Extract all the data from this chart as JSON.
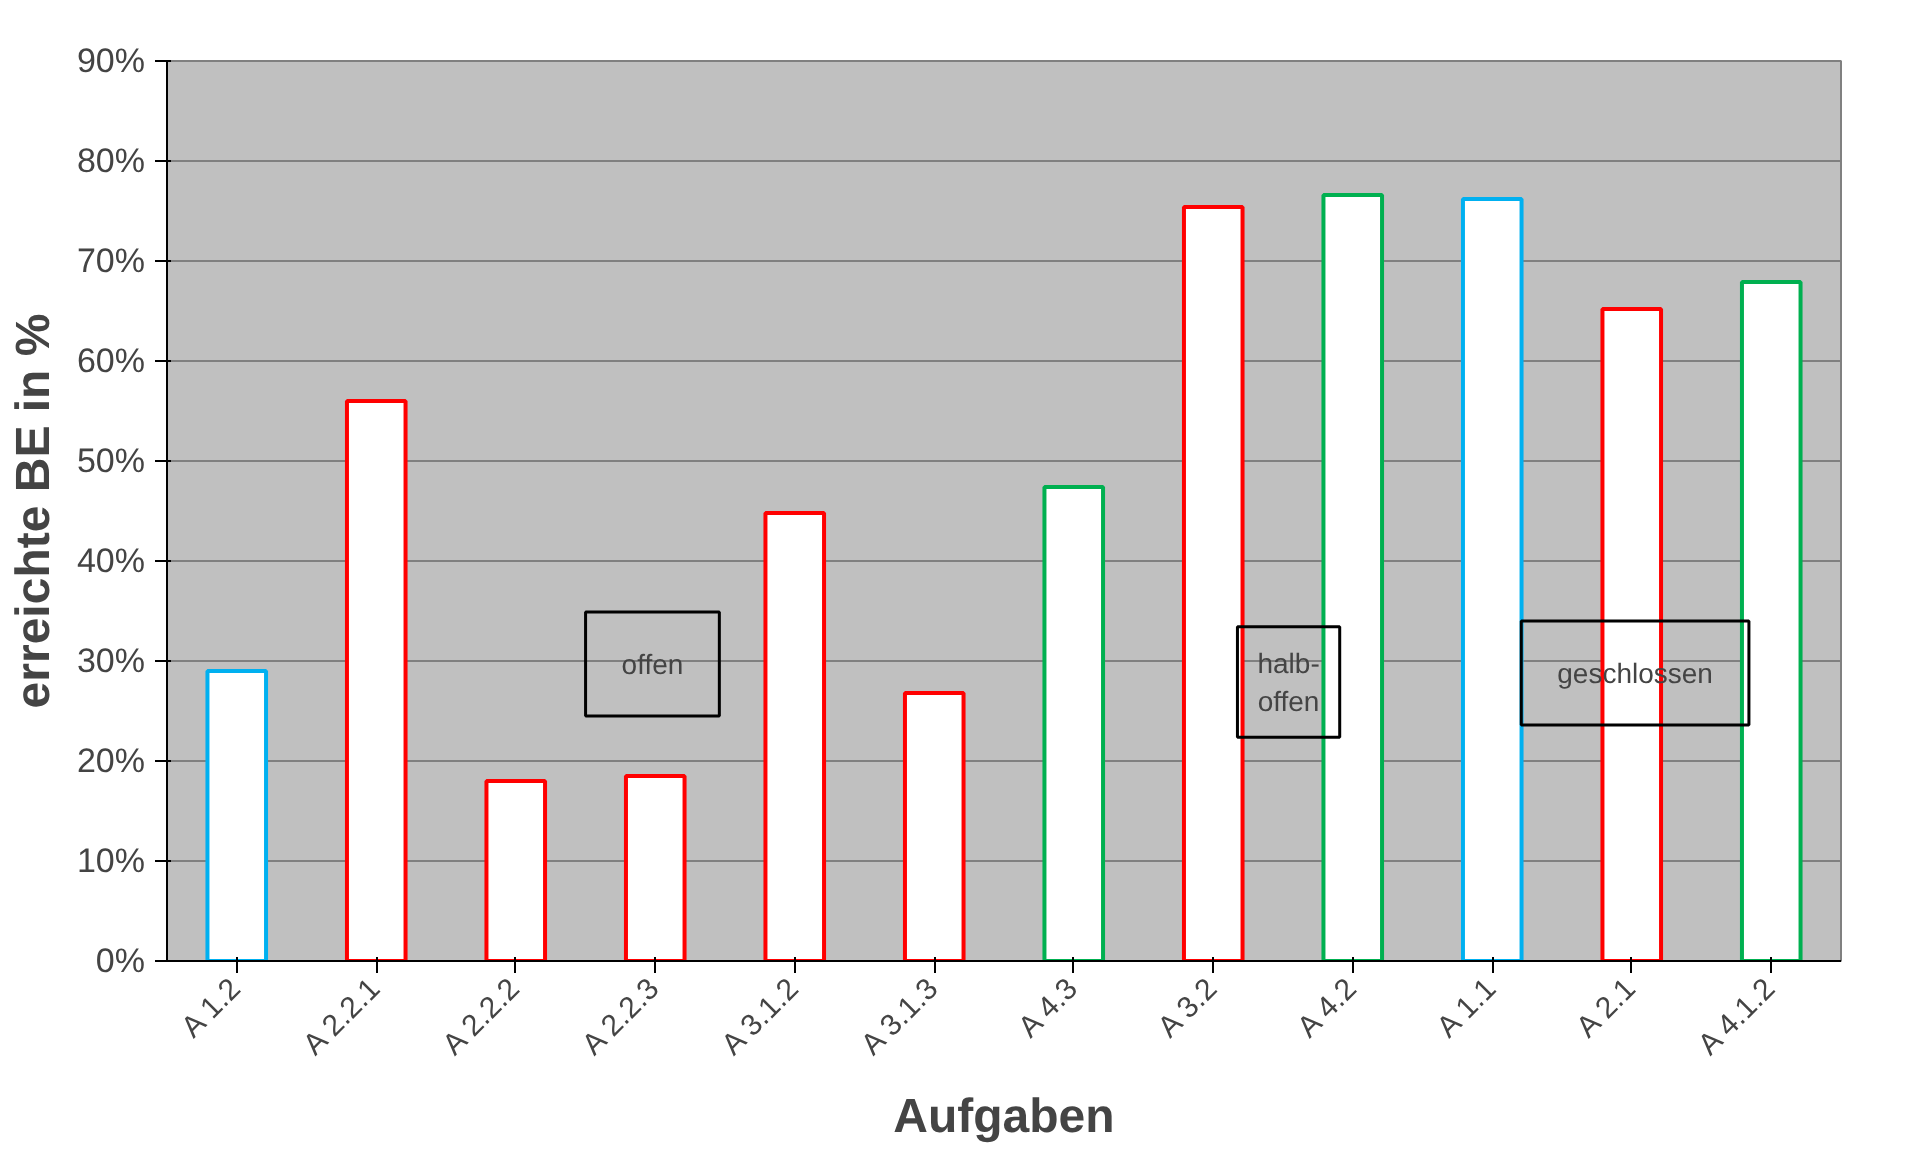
{
  "chart_data": {
    "type": "bar",
    "xlabel": "Aufgaben",
    "ylabel": "erreichte BE in %",
    "categories": [
      "A 1.2",
      "A 2.2.1",
      "A 2.2.2",
      "A 2.2.3",
      "A 3.1.2",
      "A 3.1.3",
      "A 4.3",
      "A 3.2",
      "A 4.2",
      "A 1.1",
      "A 2.1",
      "A 4.1.2"
    ],
    "values": [
      29,
      56,
      18,
      18.5,
      44.8,
      26.8,
      47.4,
      75.4,
      76.6,
      76.2,
      65.2,
      67.9
    ],
    "colors": [
      "#00b0f0",
      "#ff0000",
      "#ff0000",
      "#ff0000",
      "#ff0000",
      "#ff0000",
      "#00b050",
      "#ff0000",
      "#00b050",
      "#00b0f0",
      "#ff0000",
      "#00b050"
    ],
    "ylim": [
      0,
      90
    ],
    "yticks": [
      {
        "value": 0,
        "label": "0%"
      },
      {
        "value": 10,
        "label": "10%"
      },
      {
        "value": 20,
        "label": "20%"
      },
      {
        "value": 30,
        "label": "30%"
      },
      {
        "value": 40,
        "label": "40%"
      },
      {
        "value": 50,
        "label": "50%"
      },
      {
        "value": 60,
        "label": "60%"
      },
      {
        "value": 70,
        "label": "70%"
      },
      {
        "value": 80,
        "label": "80%"
      },
      {
        "value": 90,
        "label": "90%"
      }
    ],
    "grid": "y",
    "annotations": [
      "offen",
      "halb-\noffen",
      "geschlossen"
    ]
  }
}
